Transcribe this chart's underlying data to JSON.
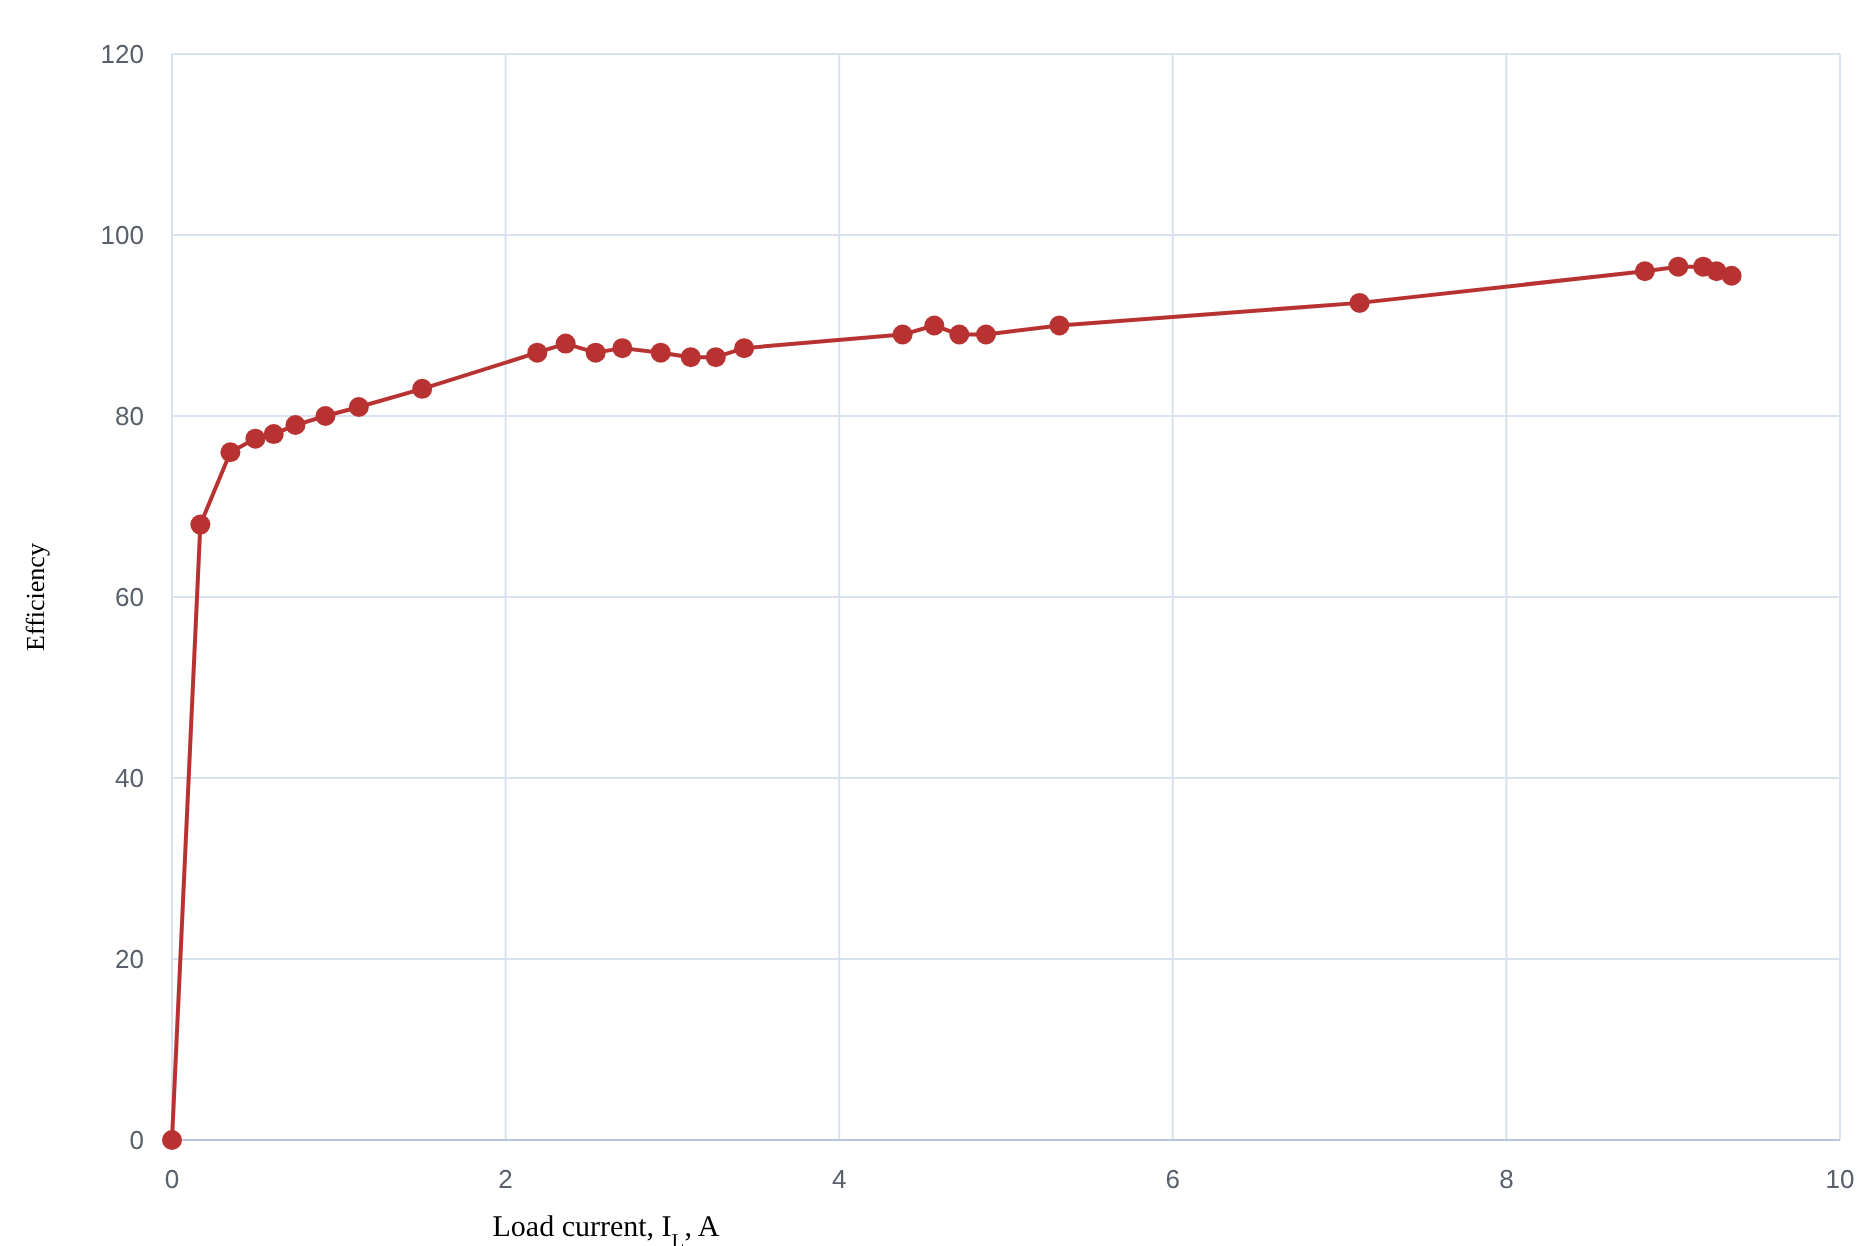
{
  "chart_data": {
    "type": "line",
    "xlabel": "Load current, I$_{L}$, A",
    "ylabel": "Efficiency",
    "xlim": [
      0,
      10
    ],
    "xticks": [
      0,
      2,
      4,
      6,
      8,
      10
    ],
    "ylim": [
      0,
      120
    ],
    "yticks": [
      0,
      20,
      40,
      60,
      80,
      100,
      120
    ],
    "grid": true,
    "marker": "circle",
    "line_style": "solid",
    "series": [
      {
        "color": "#b83232",
        "x": [
          0,
          0.17,
          0.35,
          0.5,
          0.61,
          0.74,
          0.92,
          1.12,
          1.5,
          2.19,
          2.36,
          2.54,
          2.7,
          2.93,
          3.11,
          3.26,
          3.43,
          4.38,
          4.57,
          4.72,
          4.88,
          5.32,
          7.12,
          8.83,
          9.03,
          9.18,
          9.26,
          9.35
        ],
        "values": [
          0,
          68,
          76,
          77.5,
          78,
          79,
          80,
          81,
          83,
          87,
          88,
          87,
          87.5,
          87,
          86.5,
          86.5,
          87.5,
          89,
          90,
          89,
          89,
          90,
          92.5,
          96,
          96.5,
          96.5,
          96,
          95.5
        ]
      }
    ]
  }
}
